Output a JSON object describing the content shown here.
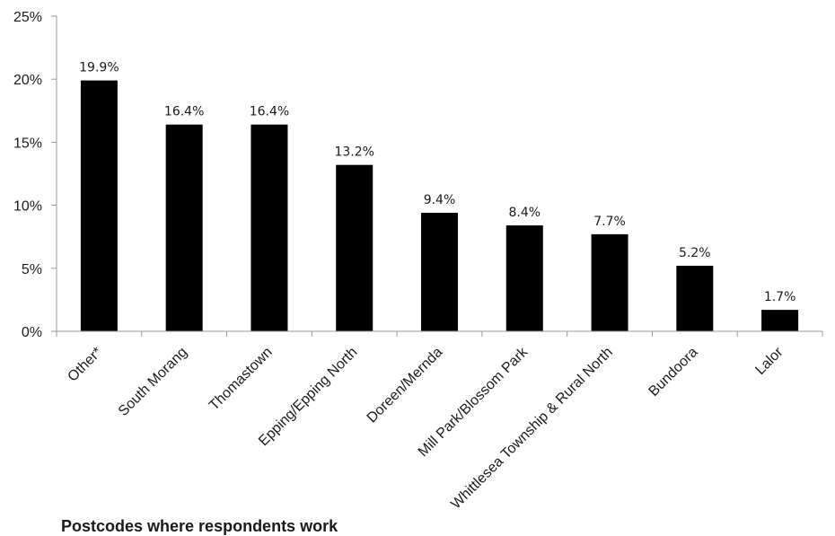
{
  "chart_data": {
    "type": "bar",
    "title": "",
    "xlabel": "Postcodes where respondents work",
    "ylabel": "",
    "categories": [
      "Other*",
      "South Morang",
      "Thomastown",
      "Epping/Epping North",
      "Doreen/Mernda",
      "Mill Park/Blossom Park",
      "Whittlesea Township & Rural North",
      "Bundoora",
      "Lalor"
    ],
    "values": [
      19.9,
      16.4,
      16.4,
      13.2,
      9.4,
      8.4,
      7.7,
      5.2,
      1.7
    ],
    "data_labels": [
      "19.9%",
      "16.4%",
      "16.4%",
      "13.2%",
      "9.4%",
      "8.4%",
      "7.7%",
      "5.2%",
      "1.7%"
    ],
    "ylim": [
      0,
      25
    ],
    "y_ticks": [
      0,
      5,
      10,
      15,
      20,
      25
    ],
    "y_tick_labels": [
      "0%",
      "5%",
      "10%",
      "15%",
      "20%",
      "25%"
    ],
    "grid": false,
    "legend": "none",
    "bar_color": "#000000",
    "axis_color": "#999999"
  }
}
